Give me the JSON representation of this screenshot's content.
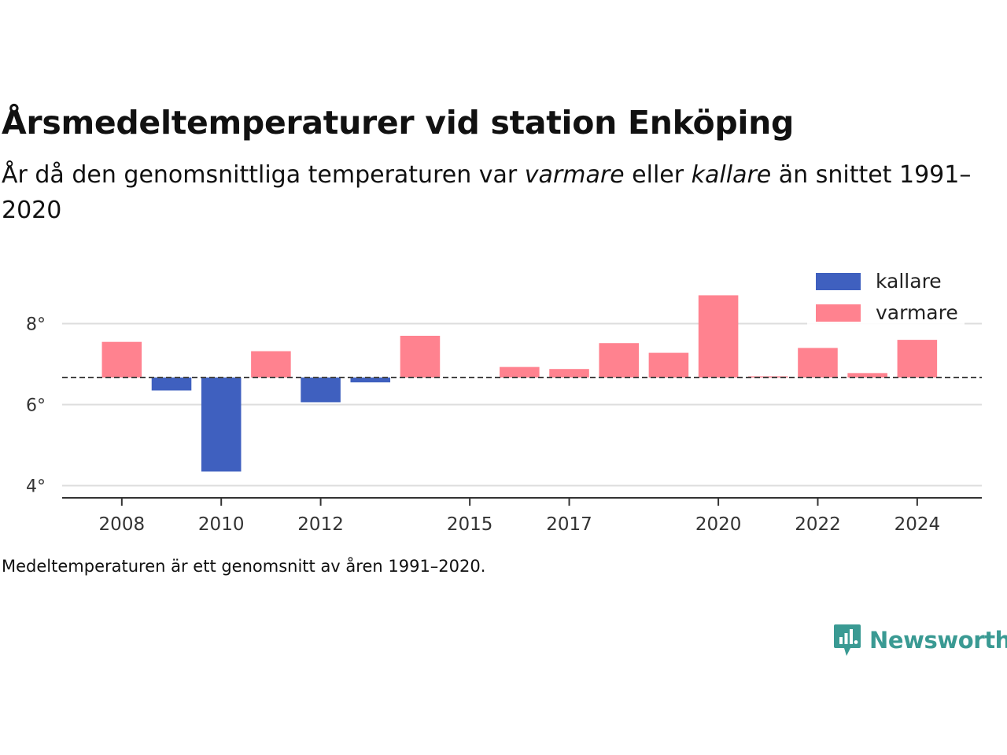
{
  "title": "Årsmedeltemperaturer vid station Enköping",
  "subtitle": {
    "part1": "År då den genomsnittliga temperaturen var ",
    "warm_word": "varmare",
    "part2": " eller ",
    "cold_word": "kallare",
    "part3": " än snittet 1991–2020"
  },
  "footnote": "Medeltemperaturen är ett genomsnitt av åren 1991–2020.",
  "brand": {
    "name": "Newsworthy",
    "icon": "newsworthy-logo-icon"
  },
  "colors": {
    "warm": "#ff828f",
    "cold": "#3f60bf",
    "baseline": "#444444",
    "grid": "#dddddd",
    "brand": "#3a9a93"
  },
  "chart_data": {
    "type": "bar",
    "title": "",
    "xlabel": "",
    "ylabel": "",
    "baseline": 6.67,
    "ylim": [
      3.7,
      9.0
    ],
    "xlim": [
      2006.8,
      2025.3
    ],
    "y_ticks": [
      4,
      6,
      8
    ],
    "y_tick_labels": [
      "4°",
      "6°",
      "8°"
    ],
    "x_ticks": [
      2008,
      2010,
      2012,
      2015,
      2017,
      2020,
      2022,
      2024
    ],
    "x_tick_labels": [
      "2008",
      "2010",
      "2012",
      "2015",
      "2017",
      "2020",
      "2022",
      "2024"
    ],
    "grid": true,
    "legend": {
      "placement": "top-right",
      "entries": [
        {
          "label": "kallare",
          "color": "#3f60bf"
        },
        {
          "label": "varmare",
          "color": "#ff828f"
        }
      ]
    },
    "x": [
      2008,
      2009,
      2010,
      2011,
      2012,
      2013,
      2014,
      2016,
      2017,
      2018,
      2019,
      2020,
      2021,
      2022,
      2023,
      2024
    ],
    "values": [
      7.55,
      6.35,
      4.35,
      7.32,
      6.06,
      6.55,
      7.7,
      6.93,
      6.88,
      7.52,
      7.28,
      8.7,
      6.7,
      7.4,
      6.78,
      7.6
    ]
  }
}
